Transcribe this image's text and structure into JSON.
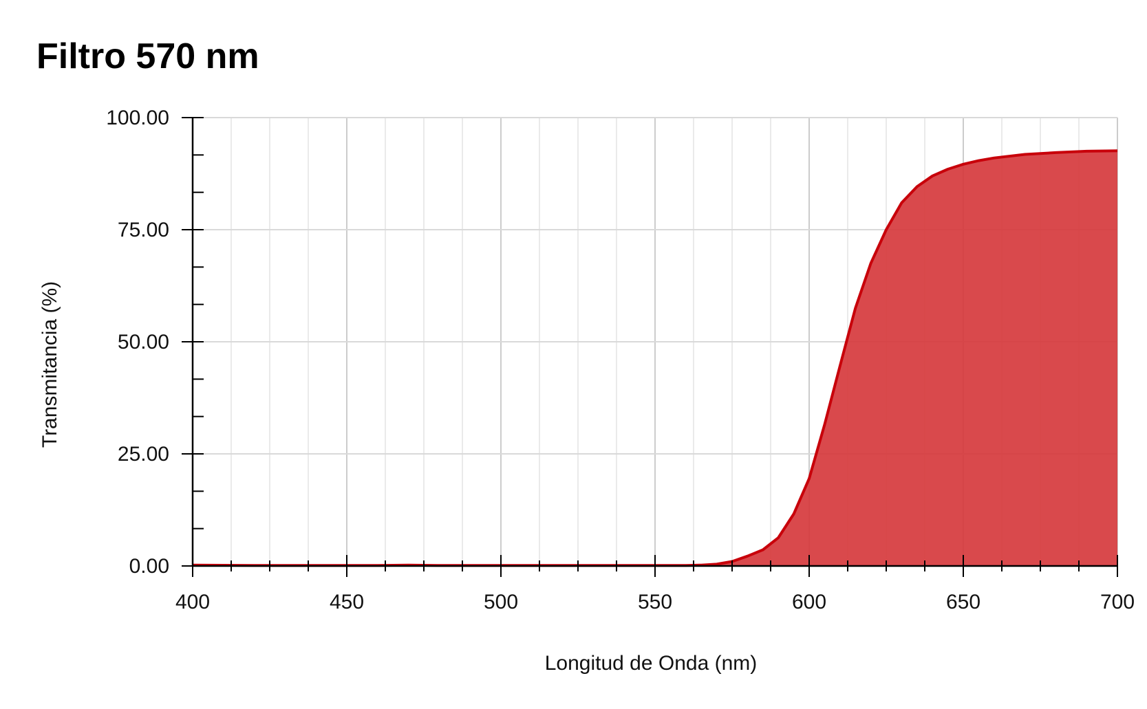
{
  "chart_data": {
    "type": "area",
    "title": "Filtro 570 nm",
    "xlabel": "Longitud de Onda (nm)",
    "ylabel": "Transmitancia (%)",
    "xlim": [
      400,
      700
    ],
    "ylim": [
      0,
      100
    ],
    "x_ticks": [
      "400",
      "450",
      "500",
      "550",
      "600",
      "650",
      "700"
    ],
    "y_ticks": [
      "0.00",
      "25.00",
      "50.00",
      "75.00",
      "100.00"
    ],
    "grid": true,
    "legend": "none",
    "colors": {
      "line": "#c8000a",
      "fill": "#d63a3d",
      "grid": "#d9d9d9",
      "axis": "#000000"
    },
    "series": [
      {
        "x": [
          400,
          420,
          440,
          460,
          470,
          480,
          500,
          520,
          540,
          560,
          565,
          570,
          575,
          580,
          585,
          590,
          595,
          600,
          605,
          610,
          615,
          620,
          625,
          630,
          635,
          640,
          645,
          650,
          655,
          660,
          670,
          680,
          690,
          700
        ],
        "y": [
          0.2,
          0.1,
          0.1,
          0.1,
          0.2,
          0.1,
          0.1,
          0.1,
          0.1,
          0.1,
          0.2,
          0.4,
          1.0,
          2.2,
          3.6,
          6.3,
          11.6,
          19.5,
          31.5,
          44.6,
          57.5,
          67.5,
          75.0,
          81.0,
          84.6,
          87.0,
          88.5,
          89.6,
          90.4,
          91.0,
          91.8,
          92.2,
          92.5,
          92.6
        ]
      }
    ]
  }
}
